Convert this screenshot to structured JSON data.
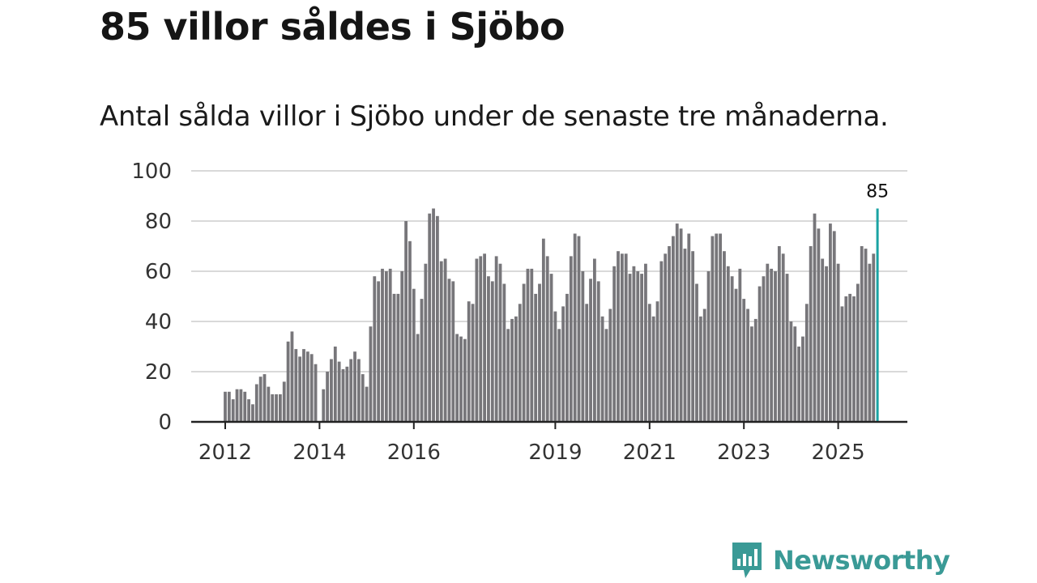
{
  "title": "85 villor såldes i Sjöbo",
  "subtitle": "Antal sålda villor i Sjöbo under de senaste tre månaderna.",
  "brand": "Newsworthy",
  "colors": {
    "bar": "#77767a",
    "highlight": "#1aa3a3",
    "grid": "#d9d9d9",
    "axis": "#222222",
    "brand": "#3a9a96"
  },
  "chart_data": {
    "type": "bar",
    "title": "85 villor såldes i Sjöbo",
    "ylabel": "",
    "xlabel": "",
    "ylim": [
      0,
      100
    ],
    "yticks": [
      0,
      20,
      40,
      60,
      80,
      100
    ],
    "start_year": 2012,
    "start_month": 1,
    "xticks": [
      "2012",
      "2014",
      "2016",
      "2019",
      "2021",
      "2023",
      "2025"
    ],
    "values": [
      12,
      12,
      9,
      13,
      13,
      12,
      9,
      7,
      15,
      18,
      19,
      14,
      11,
      11,
      11,
      16,
      32,
      36,
      29,
      26,
      29,
      28,
      27,
      23,
      0,
      13,
      20,
      25,
      30,
      24,
      21,
      22,
      25,
      28,
      25,
      19,
      14,
      38,
      58,
      56,
      61,
      60,
      61,
      51,
      51,
      60,
      80,
      72,
      53,
      35,
      49,
      63,
      83,
      85,
      82,
      64,
      65,
      57,
      56,
      35,
      34,
      33,
      48,
      47,
      65,
      66,
      67,
      58,
      56,
      66,
      63,
      55,
      37,
      41,
      42,
      47,
      55,
      61,
      61,
      51,
      55,
      73,
      66,
      59,
      44,
      37,
      46,
      51,
      66,
      75,
      74,
      60,
      47,
      57,
      65,
      56,
      42,
      37,
      45,
      62,
      68,
      67,
      67,
      59,
      62,
      60,
      59,
      63,
      47,
      42,
      48,
      64,
      67,
      70,
      74,
      79,
      77,
      69,
      75,
      68,
      55,
      42,
      45,
      60,
      74,
      75,
      75,
      68,
      62,
      58,
      53,
      61,
      49,
      45,
      38,
      41,
      54,
      58,
      63,
      61,
      60,
      70,
      67,
      59,
      40,
      38,
      30,
      34,
      47,
      70,
      83,
      77,
      65,
      62,
      79,
      76,
      63,
      46,
      50,
      51,
      50,
      55,
      70,
      69,
      63,
      67,
      85
    ],
    "highlight_label": "85"
  }
}
